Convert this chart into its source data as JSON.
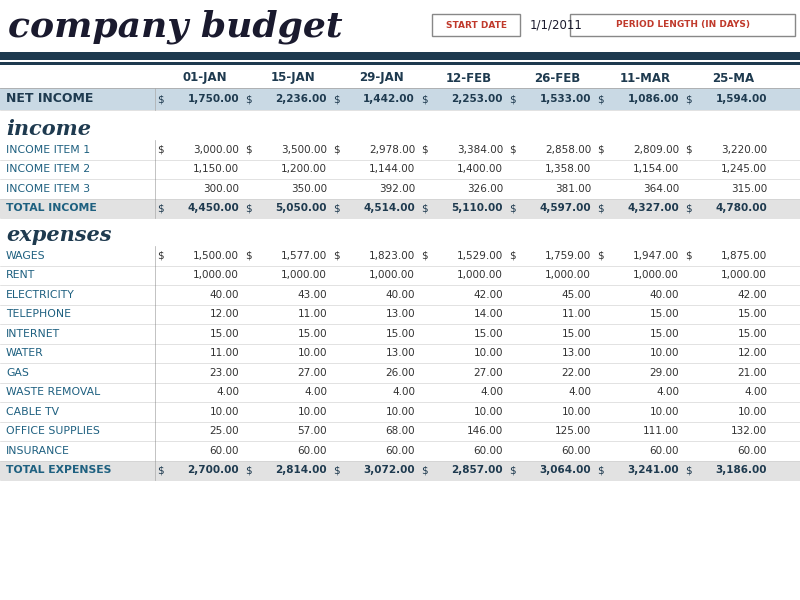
{
  "title": "company budget",
  "start_date_label": "START DATE",
  "start_date_value": "1/1/2011",
  "period_label": "PERIOD LENGTH (IN DAYS)",
  "columns": [
    "01-JAN",
    "15-JAN",
    "29-JAN",
    "12-FEB",
    "26-FEB",
    "11-MAR",
    "25-MA"
  ],
  "net_income": [
    1750.0,
    2236.0,
    1442.0,
    2253.0,
    1533.0,
    1086.0,
    1594.0
  ],
  "income_items": {
    "INCOME ITEM 1": [
      3000.0,
      3500.0,
      2978.0,
      3384.0,
      2858.0,
      2809.0,
      3220.0
    ],
    "INCOME ITEM 2": [
      1150.0,
      1200.0,
      1144.0,
      1400.0,
      1358.0,
      1154.0,
      1245.0
    ],
    "INCOME ITEM 3": [
      300.0,
      350.0,
      392.0,
      326.0,
      381.0,
      364.0,
      315.0
    ],
    "TOTAL INCOME": [
      4450.0,
      5050.0,
      4514.0,
      5110.0,
      4597.0,
      4327.0,
      4780.0
    ]
  },
  "expense_items": {
    "WAGES": [
      1500.0,
      1577.0,
      1823.0,
      1529.0,
      1759.0,
      1947.0,
      1875.0
    ],
    "RENT": [
      1000.0,
      1000.0,
      1000.0,
      1000.0,
      1000.0,
      1000.0,
      1000.0
    ],
    "ELECTRICITY": [
      40.0,
      43.0,
      40.0,
      42.0,
      45.0,
      40.0,
      42.0
    ],
    "TELEPHONE": [
      12.0,
      11.0,
      13.0,
      14.0,
      11.0,
      15.0,
      15.0
    ],
    "INTERNET": [
      15.0,
      15.0,
      15.0,
      15.0,
      15.0,
      15.0,
      15.0
    ],
    "WATER": [
      11.0,
      10.0,
      13.0,
      10.0,
      13.0,
      10.0,
      12.0
    ],
    "GAS": [
      23.0,
      27.0,
      26.0,
      27.0,
      22.0,
      29.0,
      21.0
    ],
    "WASTE REMOVAL": [
      4.0,
      4.0,
      4.0,
      4.0,
      4.0,
      4.0,
      4.0
    ],
    "CABLE TV": [
      10.0,
      10.0,
      10.0,
      10.0,
      10.0,
      10.0,
      10.0
    ],
    "OFFICE SUPPLIES": [
      25.0,
      57.0,
      68.0,
      146.0,
      125.0,
      111.0,
      132.0
    ],
    "INSURANCE": [
      60.0,
      60.0,
      60.0,
      60.0,
      60.0,
      60.0,
      60.0
    ],
    "TOTAL EXPENSES": [
      2700.0,
      2814.0,
      3072.0,
      2857.0,
      3064.0,
      3241.0,
      3186.0
    ]
  },
  "navy": "#1e3a4f",
  "net_income_bg": "#c9d9e4",
  "total_row_bg": "#e2e2e2",
  "col_header_color": "#1e3a4f",
  "row_label_color": "#1e6080",
  "white_bg": "#ffffff"
}
